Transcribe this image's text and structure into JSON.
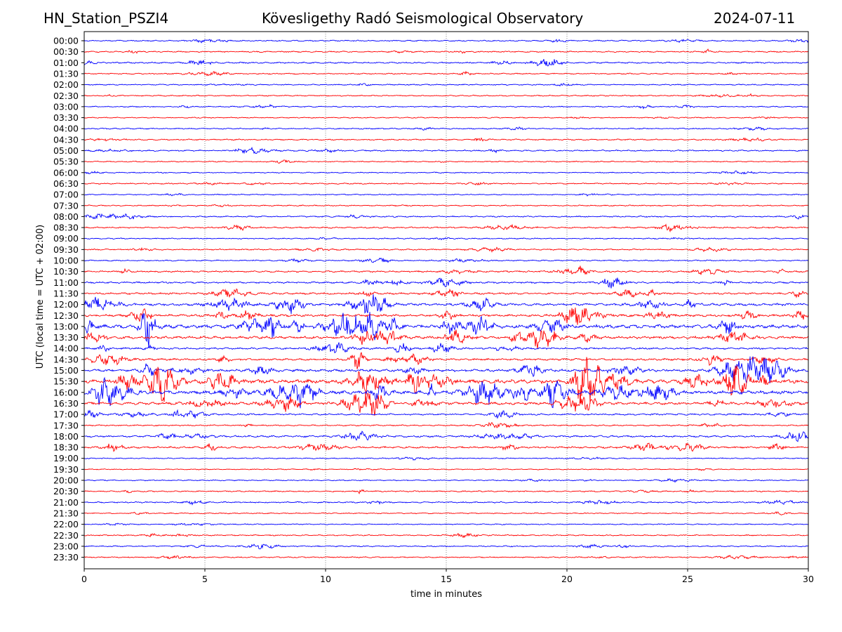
{
  "header": {
    "station": "HN_Station_PSZI4",
    "observatory": "Kövesligethy Radó Seismological Observatory",
    "date": "2024-07-11"
  },
  "chart_data": {
    "type": "line",
    "subtype": "helicorder",
    "title": "Kövesligethy Radó Seismological Observatory",
    "station": "HN_Station_PSZI4",
    "date": "2024-07-11",
    "xlabel": "time in minutes",
    "ylabel": "UTC (local time = UTC + 02:00)",
    "xlim": [
      0,
      30
    ],
    "x_ticks": [
      "0",
      "5",
      "10",
      "15",
      "20",
      "25",
      "30"
    ],
    "x_tick_values": [
      0,
      5,
      10,
      15,
      20,
      25,
      30
    ],
    "grid": "vertical dotted at 5-minute intervals",
    "colors": [
      "#0000ff",
      "#ff0000"
    ],
    "rows": [
      {
        "label": "00:00",
        "activity": 0.15
      },
      {
        "label": "00:30",
        "activity": 0.15
      },
      {
        "label": "01:00",
        "activity": 0.2
      },
      {
        "label": "01:30",
        "activity": 0.12
      },
      {
        "label": "02:00",
        "activity": 0.1
      },
      {
        "label": "02:30",
        "activity": 0.1
      },
      {
        "label": "03:00",
        "activity": 0.12
      },
      {
        "label": "03:30",
        "activity": 0.08
      },
      {
        "label": "04:00",
        "activity": 0.12
      },
      {
        "label": "04:30",
        "activity": 0.15
      },
      {
        "label": "05:00",
        "activity": 0.18
      },
      {
        "label": "05:30",
        "activity": 0.08
      },
      {
        "label": "06:00",
        "activity": 0.08
      },
      {
        "label": "06:30",
        "activity": 0.12
      },
      {
        "label": "07:00",
        "activity": 0.08
      },
      {
        "label": "07:30",
        "activity": 0.1
      },
      {
        "label": "08:00",
        "activity": 0.18
      },
      {
        "label": "08:30",
        "activity": 0.22
      },
      {
        "label": "09:00",
        "activity": 0.1
      },
      {
        "label": "09:30",
        "activity": 0.15
      },
      {
        "label": "10:00",
        "activity": 0.15
      },
      {
        "label": "10:30",
        "activity": 0.25
      },
      {
        "label": "11:00",
        "activity": 0.3
      },
      {
        "label": "11:30",
        "activity": 0.35
      },
      {
        "label": "12:00",
        "activity": 0.55
      },
      {
        "label": "12:30",
        "activity": 0.5
      },
      {
        "label": "13:00",
        "activity": 0.9
      },
      {
        "label": "13:30",
        "activity": 0.6
      },
      {
        "label": "14:00",
        "activity": 0.35
      },
      {
        "label": "14:30",
        "activity": 0.4
      },
      {
        "label": "15:00",
        "activity": 0.6
      },
      {
        "label": "15:30",
        "activity": 1.0
      },
      {
        "label": "16:00",
        "activity": 0.85
      },
      {
        "label": "16:30",
        "activity": 0.6
      },
      {
        "label": "17:00",
        "activity": 0.3
      },
      {
        "label": "17:30",
        "activity": 0.15
      },
      {
        "label": "18:00",
        "activity": 0.35
      },
      {
        "label": "18:30",
        "activity": 0.35
      },
      {
        "label": "19:00",
        "activity": 0.08
      },
      {
        "label": "19:30",
        "activity": 0.06
      },
      {
        "label": "20:00",
        "activity": 0.1
      },
      {
        "label": "20:30",
        "activity": 0.15
      },
      {
        "label": "21:00",
        "activity": 0.18
      },
      {
        "label": "21:30",
        "activity": 0.08
      },
      {
        "label": "22:00",
        "activity": 0.08
      },
      {
        "label": "22:30",
        "activity": 0.12
      },
      {
        "label": "23:00",
        "activity": 0.15
      },
      {
        "label": "23:30",
        "activity": 0.12
      }
    ]
  }
}
